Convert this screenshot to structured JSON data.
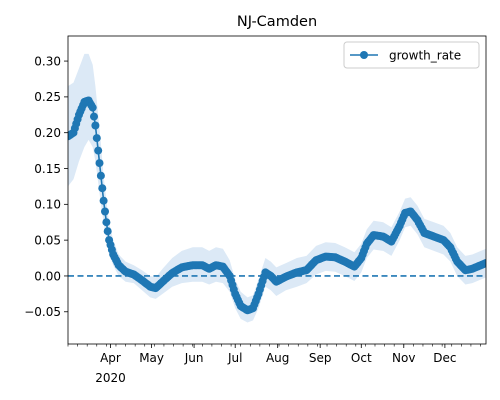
{
  "chart_data": {
    "type": "line",
    "title": "NJ-Camden",
    "xlabel": "",
    "ylabel": "",
    "x_start": "2020-03-01",
    "x_end": "2020-12-31",
    "xlim": [
      "2020-03-01",
      "2020-12-31"
    ],
    "ylim": [
      -0.095,
      0.335
    ],
    "y_ticks": [
      -0.05,
      0.0,
      0.05,
      0.1,
      0.15,
      0.2,
      0.25,
      0.3
    ],
    "y_tick_labels": [
      "−0.05",
      "0.00",
      "0.05",
      "0.10",
      "0.15",
      "0.20",
      "0.25",
      "0.30"
    ],
    "x_ticks": [
      {
        "date": "2020-04-01",
        "label": "Apr",
        "sublabel": "2020"
      },
      {
        "date": "2020-05-01",
        "label": "May",
        "sublabel": ""
      },
      {
        "date": "2020-06-01",
        "label": "Jun",
        "sublabel": ""
      },
      {
        "date": "2020-07-01",
        "label": "Jul",
        "sublabel": ""
      },
      {
        "date": "2020-08-01",
        "label": "Aug",
        "sublabel": ""
      },
      {
        "date": "2020-09-01",
        "label": "Sep",
        "sublabel": ""
      },
      {
        "date": "2020-10-01",
        "label": "Oct",
        "sublabel": ""
      },
      {
        "date": "2020-11-01",
        "label": "Nov",
        "sublabel": ""
      },
      {
        "date": "2020-12-01",
        "label": "Dec",
        "sublabel": ""
      }
    ],
    "legend": {
      "position": "upper right"
    },
    "reference_line": {
      "y": 0.0,
      "style": "dashed"
    },
    "series": [
      {
        "name": "growth_rate",
        "color": "#1f77b4",
        "band_color": "#dce9f6",
        "marker": "circle",
        "points": [
          {
            "x": "2020-03-01",
            "y": 0.195,
            "lo": 0.125,
            "hi": 0.265
          },
          {
            "x": "2020-03-05",
            "y": 0.2,
            "lo": 0.135,
            "hi": 0.27
          },
          {
            "x": "2020-03-09",
            "y": 0.225,
            "lo": 0.16,
            "hi": 0.29
          },
          {
            "x": "2020-03-13",
            "y": 0.243,
            "lo": 0.18,
            "hi": 0.31
          },
          {
            "x": "2020-03-16",
            "y": 0.245,
            "lo": 0.19,
            "hi": 0.31
          },
          {
            "x": "2020-03-19",
            "y": 0.235,
            "lo": 0.18,
            "hi": 0.295
          },
          {
            "x": "2020-03-21",
            "y": 0.21,
            "lo": 0.16,
            "hi": 0.265
          },
          {
            "x": "2020-03-23",
            "y": 0.175,
            "lo": 0.13,
            "hi": 0.225
          },
          {
            "x": "2020-03-25",
            "y": 0.14,
            "lo": 0.1,
            "hi": 0.185
          },
          {
            "x": "2020-03-27",
            "y": 0.105,
            "lo": 0.075,
            "hi": 0.14
          },
          {
            "x": "2020-03-29",
            "y": 0.075,
            "lo": 0.05,
            "hi": 0.105
          },
          {
            "x": "2020-03-31",
            "y": 0.05,
            "lo": 0.03,
            "hi": 0.075
          },
          {
            "x": "2020-04-03",
            "y": 0.03,
            "lo": 0.015,
            "hi": 0.05
          },
          {
            "x": "2020-04-07",
            "y": 0.015,
            "lo": 0.0,
            "hi": 0.03
          },
          {
            "x": "2020-04-12",
            "y": 0.006,
            "lo": -0.008,
            "hi": 0.02
          },
          {
            "x": "2020-04-18",
            "y": 0.002,
            "lo": -0.01,
            "hi": 0.015
          },
          {
            "x": "2020-04-24",
            "y": -0.006,
            "lo": -0.02,
            "hi": 0.008
          },
          {
            "x": "2020-04-30",
            "y": -0.015,
            "lo": -0.03,
            "hi": 0.0
          },
          {
            "x": "2020-05-04",
            "y": -0.017,
            "lo": -0.032,
            "hi": -0.002
          },
          {
            "x": "2020-05-09",
            "y": -0.008,
            "lo": -0.025,
            "hi": 0.01
          },
          {
            "x": "2020-05-16",
            "y": 0.004,
            "lo": -0.015,
            "hi": 0.025
          },
          {
            "x": "2020-05-23",
            "y": 0.012,
            "lo": -0.01,
            "hi": 0.035
          },
          {
            "x": "2020-05-31",
            "y": 0.015,
            "lo": -0.008,
            "hi": 0.04
          },
          {
            "x": "2020-06-07",
            "y": 0.015,
            "lo": -0.008,
            "hi": 0.04
          },
          {
            "x": "2020-06-12",
            "y": 0.01,
            "lo": -0.012,
            "hi": 0.035
          },
          {
            "x": "2020-06-17",
            "y": 0.015,
            "lo": -0.008,
            "hi": 0.04
          },
          {
            "x": "2020-06-22",
            "y": 0.013,
            "lo": -0.01,
            "hi": 0.038
          },
          {
            "x": "2020-06-27",
            "y": 0.0,
            "lo": -0.022,
            "hi": 0.022
          },
          {
            "x": "2020-07-01",
            "y": -0.025,
            "lo": -0.045,
            "hi": -0.005
          },
          {
            "x": "2020-07-05",
            "y": -0.042,
            "lo": -0.06,
            "hi": -0.022
          },
          {
            "x": "2020-07-10",
            "y": -0.048,
            "lo": -0.065,
            "hi": -0.03
          },
          {
            "x": "2020-07-14",
            "y": -0.045,
            "lo": -0.062,
            "hi": -0.027
          },
          {
            "x": "2020-07-18",
            "y": -0.025,
            "lo": -0.045,
            "hi": -0.005
          },
          {
            "x": "2020-07-23",
            "y": 0.005,
            "lo": -0.015,
            "hi": 0.025
          },
          {
            "x": "2020-07-27",
            "y": 0.0,
            "lo": -0.02,
            "hi": 0.02
          },
          {
            "x": "2020-07-31",
            "y": -0.008,
            "lo": -0.028,
            "hi": 0.012
          },
          {
            "x": "2020-08-07",
            "y": -0.001,
            "lo": -0.02,
            "hi": 0.018
          },
          {
            "x": "2020-08-15",
            "y": 0.005,
            "lo": -0.015,
            "hi": 0.025
          },
          {
            "x": "2020-08-22",
            "y": 0.008,
            "lo": -0.01,
            "hi": 0.028
          },
          {
            "x": "2020-08-29",
            "y": 0.022,
            "lo": 0.002,
            "hi": 0.042
          },
          {
            "x": "2020-09-05",
            "y": 0.027,
            "lo": 0.007,
            "hi": 0.047
          },
          {
            "x": "2020-09-12",
            "y": 0.026,
            "lo": 0.006,
            "hi": 0.046
          },
          {
            "x": "2020-09-19",
            "y": 0.02,
            "lo": 0.0,
            "hi": 0.04
          },
          {
            "x": "2020-09-26",
            "y": 0.013,
            "lo": -0.007,
            "hi": 0.033
          },
          {
            "x": "2020-10-01",
            "y": 0.025,
            "lo": 0.005,
            "hi": 0.045
          },
          {
            "x": "2020-10-05",
            "y": 0.045,
            "lo": 0.025,
            "hi": 0.065
          },
          {
            "x": "2020-10-10",
            "y": 0.057,
            "lo": 0.037,
            "hi": 0.077
          },
          {
            "x": "2020-10-17",
            "y": 0.055,
            "lo": 0.035,
            "hi": 0.075
          },
          {
            "x": "2020-10-23",
            "y": 0.048,
            "lo": 0.028,
            "hi": 0.068
          },
          {
            "x": "2020-10-29",
            "y": 0.07,
            "lo": 0.05,
            "hi": 0.09
          },
          {
            "x": "2020-11-02",
            "y": 0.088,
            "lo": 0.068,
            "hi": 0.108
          },
          {
            "x": "2020-11-06",
            "y": 0.09,
            "lo": 0.07,
            "hi": 0.11
          },
          {
            "x": "2020-11-11",
            "y": 0.078,
            "lo": 0.058,
            "hi": 0.098
          },
          {
            "x": "2020-11-16",
            "y": 0.06,
            "lo": 0.04,
            "hi": 0.08
          },
          {
            "x": "2020-11-23",
            "y": 0.055,
            "lo": 0.035,
            "hi": 0.075
          },
          {
            "x": "2020-11-30",
            "y": 0.05,
            "lo": 0.03,
            "hi": 0.07
          },
          {
            "x": "2020-12-05",
            "y": 0.04,
            "lo": 0.02,
            "hi": 0.06
          },
          {
            "x": "2020-12-10",
            "y": 0.02,
            "lo": 0.0,
            "hi": 0.04
          },
          {
            "x": "2020-12-16",
            "y": 0.008,
            "lo": -0.012,
            "hi": 0.028
          },
          {
            "x": "2020-12-21",
            "y": 0.01,
            "lo": -0.01,
            "hi": 0.03
          },
          {
            "x": "2020-12-26",
            "y": 0.014,
            "lo": -0.006,
            "hi": 0.034
          },
          {
            "x": "2020-12-31",
            "y": 0.018,
            "lo": -0.002,
            "hi": 0.038
          }
        ]
      }
    ]
  }
}
